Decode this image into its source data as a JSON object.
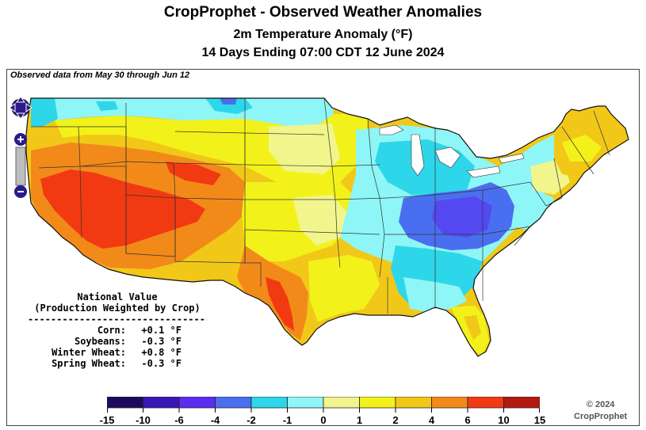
{
  "header": {
    "title": "CropProphet - Observed Weather Anomalies",
    "subtitle": "2m Temperature Anomaly (°F)",
    "period": "14 Days Ending 07:00 CDT 12 June 2024"
  },
  "observed_note": "Observed data from May 30 through Jun 12",
  "national": {
    "heading1": "National Value",
    "heading2": "(Production Weighted by Crop)",
    "separator": "--------------------------------",
    "rows": [
      {
        "crop": "Corn:",
        "value": "+0.1 °F"
      },
      {
        "crop": "Soybeans:",
        "value": "-0.3 °F"
      },
      {
        "crop": "Winter Wheat:",
        "value": "+0.8 °F"
      },
      {
        "crop": "Spring Wheat:",
        "value": "-0.3 °F"
      }
    ]
  },
  "legend": {
    "ticks": [
      "-15",
      "-10",
      "-6",
      "-4",
      "-2",
      "-1",
      "0",
      "1",
      "2",
      "4",
      "6",
      "10",
      "15"
    ],
    "colors": [
      "#1c0a5e",
      "#3a16b8",
      "#5c2cf0",
      "#4a6ef0",
      "#2ed6ea",
      "#8ef6f6",
      "#f2f58c",
      "#f2f21a",
      "#f2c818",
      "#f28a1a",
      "#f23a12",
      "#b21a10"
    ]
  },
  "copyright": {
    "line1": "© 2024",
    "line2": "CropProphet"
  }
}
